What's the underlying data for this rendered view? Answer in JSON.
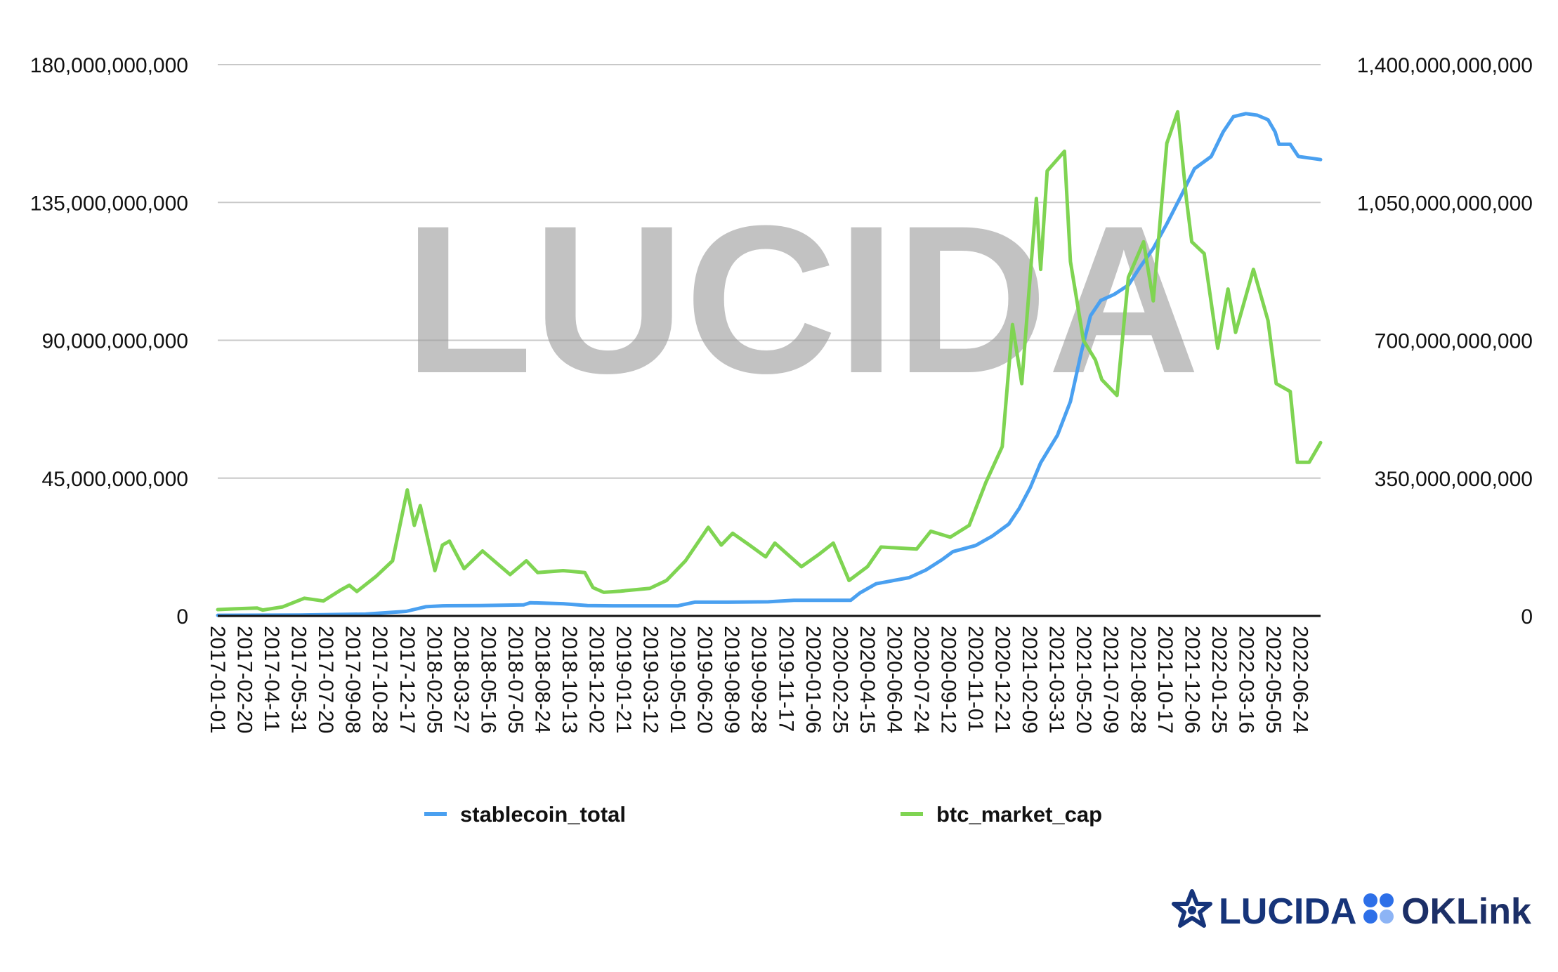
{
  "watermark": "LUCIDA",
  "logos": {
    "lucida": "LUCIDA",
    "oklink": "OKLink",
    "lucida_color": "#16347a",
    "oklink_color": "#1c2f67",
    "oklink_dot_color": "#2d6fe8"
  },
  "chart_data": {
    "type": "line",
    "title": "",
    "xlabel": "",
    "ylabel_left": "",
    "ylabel_right": "",
    "y_left": {
      "min": 0,
      "max": 180000000000,
      "ticks": [
        "0",
        "45,000,000,000",
        "90,000,000,000",
        "135,000,000,000",
        "180,000,000,000"
      ]
    },
    "y_right": {
      "min": 0,
      "max": 1400000000000,
      "ticks": [
        "0",
        "350,000,000,000",
        "700,000,000,000",
        "1,050,000,000,000",
        "1,400,000,000,000"
      ]
    },
    "x_range": [
      "2017-01-01",
      "2022-07-31"
    ],
    "x_ticks": [
      "2017-01-01",
      "2017-02-20",
      "2017-04-11",
      "2017-05-31",
      "2017-07-20",
      "2017-09-08",
      "2017-10-28",
      "2017-12-17",
      "2018-02-05",
      "2018-03-27",
      "2018-05-16",
      "2018-07-05",
      "2018-08-24",
      "2018-10-13",
      "2018-12-02",
      "2019-01-21",
      "2019-03-12",
      "2019-05-01",
      "2019-06-20",
      "2019-08-09",
      "2019-09-28",
      "2019-11-17",
      "2020-01-06",
      "2020-02-25",
      "2020-04-15",
      "2020-06-04",
      "2020-07-24",
      "2020-09-12",
      "2020-11-01",
      "2020-12-21",
      "2021-02-09",
      "2021-03-31",
      "2021-05-20",
      "2021-07-09",
      "2021-08-28",
      "2021-10-17",
      "2021-12-06",
      "2022-01-25",
      "2022-03-16",
      "2022-05-05",
      "2022-06-24"
    ],
    "grid": true,
    "legend_position": "bottom",
    "series": [
      {
        "name": "stablecoin_total",
        "axis": "left",
        "color": "#4aa0f0",
        "points": [
          [
            "2017-01-01",
            200000000.0
          ],
          [
            "2017-06-01",
            300000000.0
          ],
          [
            "2017-10-01",
            600000000.0
          ],
          [
            "2017-12-15",
            1500000000.0
          ],
          [
            "2018-01-20",
            3000000000.0
          ],
          [
            "2018-02-20",
            3300000000.0
          ],
          [
            "2018-05-01",
            3400000000.0
          ],
          [
            "2018-07-20",
            3600000000.0
          ],
          [
            "2018-08-01",
            4300000000.0
          ],
          [
            "2018-10-01",
            4000000000.0
          ],
          [
            "2018-11-15",
            3400000000.0
          ],
          [
            "2019-01-01",
            3300000000.0
          ],
          [
            "2019-03-01",
            3300000000.0
          ],
          [
            "2019-05-01",
            3300000000.0
          ],
          [
            "2019-06-01",
            4500000000.0
          ],
          [
            "2019-08-01",
            4500000000.0
          ],
          [
            "2019-10-15",
            4600000000.0
          ],
          [
            "2019-12-01",
            5100000000.0
          ],
          [
            "2020-02-01",
            5100000000.0
          ],
          [
            "2020-03-15",
            5100000000.0
          ],
          [
            "2020-04-01",
            7500000000.0
          ],
          [
            "2020-05-01",
            10500000000.0
          ],
          [
            "2020-07-01",
            12500000000.0
          ],
          [
            "2020-08-01",
            15000000000.0
          ],
          [
            "2020-09-01",
            18500000000.0
          ],
          [
            "2020-09-20",
            21000000000.0
          ],
          [
            "2020-11-01",
            23000000000.0
          ],
          [
            "2020-12-01",
            26000000000.0
          ],
          [
            "2021-01-01",
            30000000000.0
          ],
          [
            "2021-01-20",
            35000000000.0
          ],
          [
            "2021-02-10",
            42000000000.0
          ],
          [
            "2021-03-01",
            50000000000.0
          ],
          [
            "2021-04-01",
            59000000000.0
          ],
          [
            "2021-04-25",
            70000000000.0
          ],
          [
            "2021-05-15",
            86000000000.0
          ],
          [
            "2021-06-01",
            98000000000.0
          ],
          [
            "2021-06-20",
            103000000000.0
          ],
          [
            "2021-07-15",
            105000000000.0
          ],
          [
            "2021-08-10",
            108000000000.0
          ],
          [
            "2021-09-01",
            114000000000.0
          ],
          [
            "2021-09-25",
            120000000000.0
          ],
          [
            "2021-10-20",
            128000000000.0
          ],
          [
            "2021-11-15",
            137000000000.0
          ],
          [
            "2021-12-10",
            146000000000.0
          ],
          [
            "2022-01-10",
            150000000000.0
          ],
          [
            "2022-02-01",
            158000000000.0
          ],
          [
            "2022-02-20",
            163000000000.0
          ],
          [
            "2022-03-15",
            164000000000.0
          ],
          [
            "2022-04-05",
            163500000000.0
          ],
          [
            "2022-04-25",
            162000000000.0
          ],
          [
            "2022-05-08",
            158000000000.0
          ],
          [
            "2022-05-15",
            154000000000.0
          ],
          [
            "2022-06-05",
            154000000000.0
          ],
          [
            "2022-06-20",
            150000000000.0
          ],
          [
            "2022-07-31",
            149000000000.0
          ]
        ]
      },
      {
        "name": "btc_market_cap",
        "axis": "right",
        "color": "#7fd452",
        "points": [
          [
            "2017-01-01",
            16000000000.0
          ],
          [
            "2017-02-01",
            18000000000.0
          ],
          [
            "2017-03-15",
            20000000000.0
          ],
          [
            "2017-03-25",
            15000000000.0
          ],
          [
            "2017-05-01",
            23000000000.0
          ],
          [
            "2017-06-10",
            45000000000.0
          ],
          [
            "2017-07-15",
            38000000000.0
          ],
          [
            "2017-08-15",
            65000000000.0
          ],
          [
            "2017-09-01",
            78000000000.0
          ],
          [
            "2017-09-15",
            62000000000.0
          ],
          [
            "2017-10-20",
            100000000000.0
          ],
          [
            "2017-11-20",
            140000000000.0
          ],
          [
            "2017-12-17",
            320000000000.0
          ],
          [
            "2017-12-30",
            230000000000.0
          ],
          [
            "2018-01-10",
            280000000000.0
          ],
          [
            "2018-02-06",
            115000000000.0
          ],
          [
            "2018-02-20",
            180000000000.0
          ],
          [
            "2018-03-05",
            190000000000.0
          ],
          [
            "2018-04-01",
            120000000000.0
          ],
          [
            "2018-05-05",
            165000000000.0
          ],
          [
            "2018-06-25",
            105000000000.0
          ],
          [
            "2018-07-25",
            140000000000.0
          ],
          [
            "2018-08-15",
            110000000000.0
          ],
          [
            "2018-10-01",
            115000000000.0
          ],
          [
            "2018-11-10",
            110000000000.0
          ],
          [
            "2018-11-25",
            72000000000.0
          ],
          [
            "2018-12-15",
            60000000000.0
          ],
          [
            "2019-01-15",
            63000000000.0
          ],
          [
            "2019-03-10",
            70000000000.0
          ],
          [
            "2019-04-10",
            90000000000.0
          ],
          [
            "2019-05-15",
            140000000000.0
          ],
          [
            "2019-06-26",
            225000000000.0
          ],
          [
            "2019-07-20",
            180000000000.0
          ],
          [
            "2019-08-10",
            210000000000.0
          ],
          [
            "2019-09-10",
            180000000000.0
          ],
          [
            "2019-10-10",
            150000000000.0
          ],
          [
            "2019-10-27",
            185000000000.0
          ],
          [
            "2019-12-15",
            125000000000.0
          ],
          [
            "2020-01-15",
            155000000000.0
          ],
          [
            "2020-02-12",
            185000000000.0
          ],
          [
            "2020-03-12",
            90000000000.0
          ],
          [
            "2020-04-15",
            125000000000.0
          ],
          [
            "2020-05-10",
            175000000000.0
          ],
          [
            "2020-07-15",
            170000000000.0
          ],
          [
            "2020-08-10",
            215000000000.0
          ],
          [
            "2020-09-15",
            200000000000.0
          ],
          [
            "2020-10-20",
            230000000000.0
          ],
          [
            "2020-11-20",
            340000000000.0
          ],
          [
            "2020-12-20",
            430000000000.0
          ],
          [
            "2021-01-08",
            740000000000.0
          ],
          [
            "2021-01-25",
            590000000000.0
          ],
          [
            "2021-02-10",
            870000000000.0
          ],
          [
            "2021-02-21",
            1060000000000.0
          ],
          [
            "2021-03-01",
            880000000000.0
          ],
          [
            "2021-03-13",
            1130000000000.0
          ],
          [
            "2021-04-14",
            1180000000000.0
          ],
          [
            "2021-04-25",
            900000000000.0
          ],
          [
            "2021-05-19",
            700000000000.0
          ],
          [
            "2021-06-10",
            650000000000.0
          ],
          [
            "2021-06-22",
            600000000000.0
          ],
          [
            "2021-07-20",
            560000000000.0
          ],
          [
            "2021-08-10",
            860000000000.0
          ],
          [
            "2021-09-07",
            950000000000.0
          ],
          [
            "2021-09-25",
            800000000000.0
          ],
          [
            "2021-10-20",
            1200000000000.0
          ],
          [
            "2021-11-09",
            1280000000000.0
          ],
          [
            "2021-11-25",
            1060000000000.0
          ],
          [
            "2021-12-05",
            950000000000.0
          ],
          [
            "2021-12-28",
            920000000000.0
          ],
          [
            "2022-01-22",
            680000000000.0
          ],
          [
            "2022-02-10",
            830000000000.0
          ],
          [
            "2022-02-24",
            720000000000.0
          ],
          [
            "2022-03-29",
            880000000000.0
          ],
          [
            "2022-04-25",
            750000000000.0
          ],
          [
            "2022-05-10",
            590000000000.0
          ],
          [
            "2022-06-05",
            570000000000.0
          ],
          [
            "2022-06-18",
            390000000000.0
          ],
          [
            "2022-07-10",
            390000000000.0
          ],
          [
            "2022-07-31",
            440000000000.0
          ]
        ]
      }
    ]
  }
}
